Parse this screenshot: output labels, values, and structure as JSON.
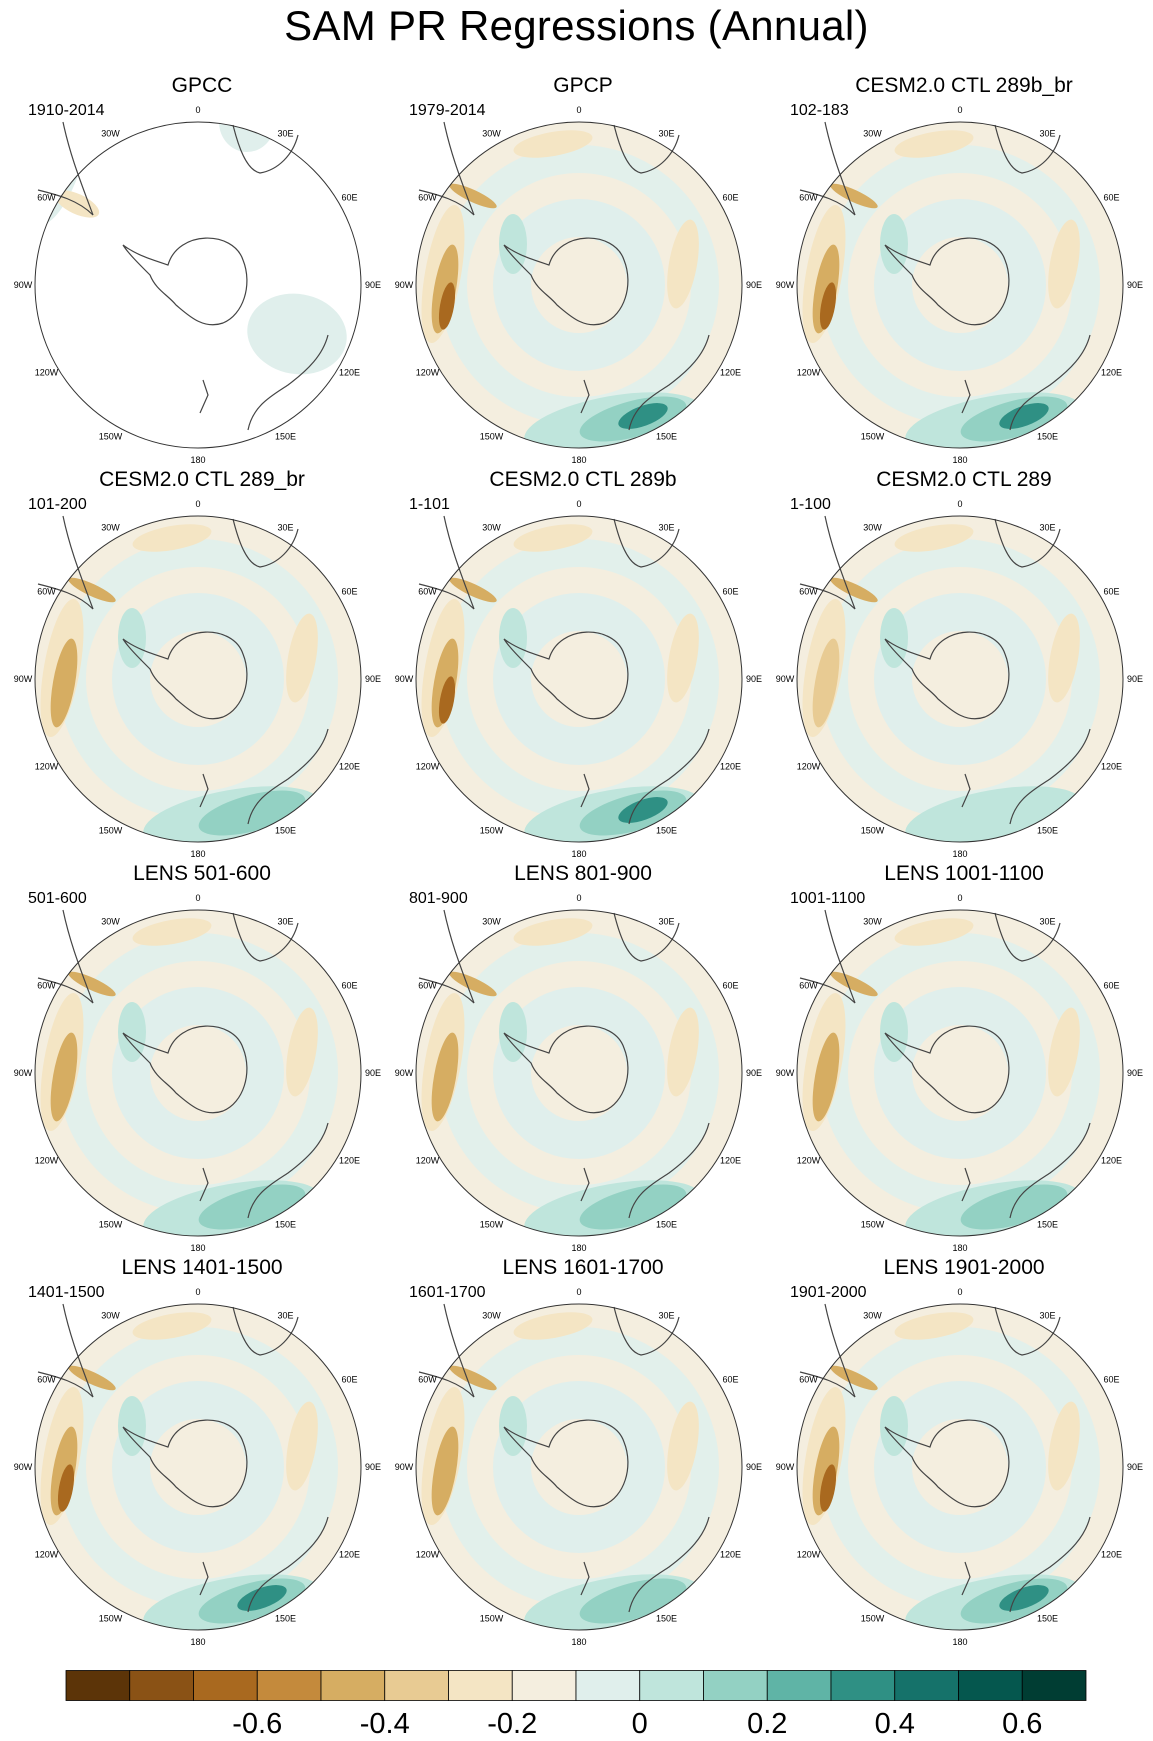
{
  "title": "SAM PR Regressions (Annual)",
  "panels": [
    {
      "title": "GPCC",
      "period": "1910-2014",
      "variant": "gpcc"
    },
    {
      "title": "GPCP",
      "period": "1979-2014",
      "variant": "gpcp"
    },
    {
      "title": "CESM2.0 CTL 289b_br",
      "period": "102-183",
      "variant": "cesm_a"
    },
    {
      "title": "CESM2.0 CTL 289_br",
      "period": "101-200",
      "variant": "cesm_b"
    },
    {
      "title": "CESM2.0 CTL 289b",
      "period": "1-101",
      "variant": "cesm_c"
    },
    {
      "title": "CESM2.0 CTL 289",
      "period": "1-100",
      "variant": "cesm_d"
    },
    {
      "title": "LENS 501-600",
      "period": "501-600",
      "variant": "lens"
    },
    {
      "title": "LENS 801-900",
      "period": "801-900",
      "variant": "lens"
    },
    {
      "title": "LENS 1001-1100",
      "period": "1001-1100",
      "variant": "lens"
    },
    {
      "title": "LENS 1401-1500",
      "period": "1401-1500",
      "variant": "lens_strong"
    },
    {
      "title": "LENS 1601-1700",
      "period": "1601-1700",
      "variant": "lens"
    },
    {
      "title": "LENS 1901-2000",
      "period": "1901-2000",
      "variant": "lens_strong"
    }
  ],
  "longitude_labels": [
    "0",
    "30E",
    "60E",
    "90E",
    "120E",
    "150E",
    "180",
    "150W",
    "120W",
    "90W",
    "60W",
    "30W"
  ],
  "colorbar": {
    "colors": [
      "#5c3408",
      "#8a5215",
      "#a9691f",
      "#c48a3c",
      "#d6ad62",
      "#e8cb93",
      "#f4e5c4",
      "#f4eedf",
      "#e0efec",
      "#bfe5dc",
      "#93d1c3",
      "#5fb4a6",
      "#2f9084",
      "#15726a",
      "#05574e",
      "#003d33"
    ],
    "tick_labels": [
      "-0.6",
      "-0.4",
      "-0.2",
      "0",
      "0.2",
      "0.4",
      "0.6"
    ]
  }
}
